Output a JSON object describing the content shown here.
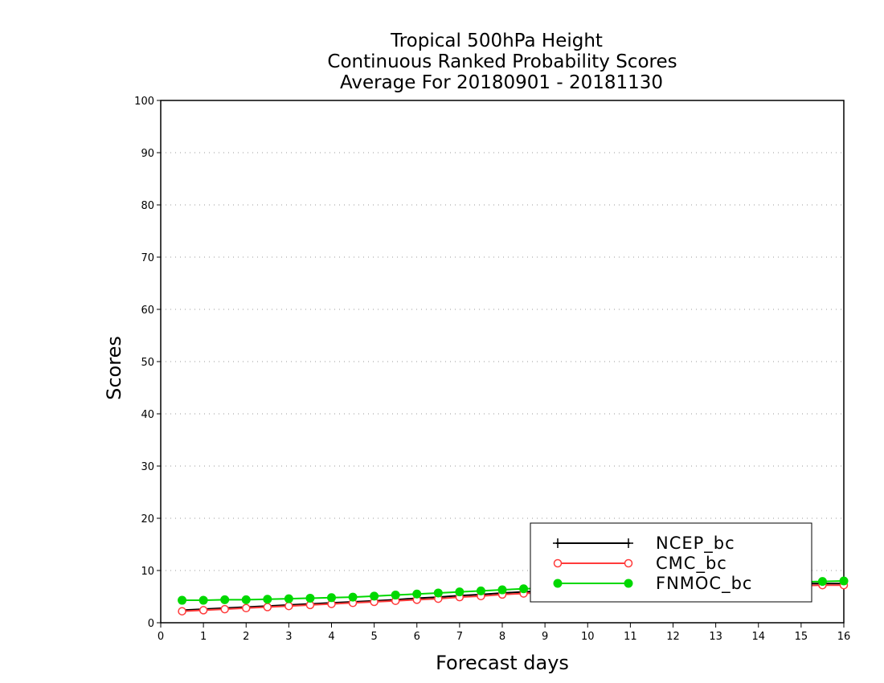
{
  "chart_data": {
    "type": "line",
    "title": [
      "Tropical 500hPa Height",
      "Continuous Ranked Probability Scores",
      "Average For 20180901 - 20181130"
    ],
    "xlabel": "Forecast days",
    "ylabel": "Scores",
    "xlim": [
      0,
      16
    ],
    "ylim": [
      0,
      100
    ],
    "xticks": [
      "0",
      "1",
      "2",
      "3",
      "4",
      "5",
      "6",
      "7",
      "8",
      "9",
      "10",
      "11",
      "12",
      "13",
      "14",
      "15",
      "16"
    ],
    "yticks": [
      "0",
      "10",
      "20",
      "30",
      "40",
      "50",
      "60",
      "70",
      "80",
      "90",
      "100"
    ],
    "grid": "horizontal dotted",
    "legend_position": "bottom-right",
    "x": [
      0.5,
      1,
      1.5,
      2,
      2.5,
      3,
      3.5,
      4,
      4.5,
      5,
      5.5,
      6,
      6.5,
      7,
      7.5,
      8,
      8.5,
      9,
      9.5,
      10,
      10.5,
      11,
      11.5,
      12,
      12.5,
      13,
      13.5,
      14,
      14.5,
      15,
      15.5,
      16
    ],
    "series": [
      {
        "name": "NCEP_bc",
        "color": "#000000",
        "marker": "plus",
        "values": [
          2.4,
          2.6,
          2.8,
          3.0,
          3.2,
          3.4,
          3.6,
          3.8,
          4.0,
          4.2,
          4.4,
          4.7,
          4.9,
          5.2,
          5.4,
          5.7,
          5.9,
          6.1,
          6.3,
          6.5,
          6.6,
          6.7,
          6.8,
          6.9,
          7.0,
          7.1,
          7.2,
          7.3,
          7.4,
          7.5,
          7.5,
          7.5
        ]
      },
      {
        "name": "CMC_bc",
        "color": "#ff3b3b",
        "marker": "open-circle",
        "values": [
          2.2,
          2.4,
          2.6,
          2.8,
          3.0,
          3.2,
          3.4,
          3.6,
          3.8,
          4.0,
          4.2,
          4.4,
          4.6,
          4.9,
          5.1,
          5.4,
          5.6,
          5.8,
          6.0,
          6.2,
          6.3,
          6.4,
          6.5,
          6.6,
          6.7,
          6.8,
          6.9,
          7.0,
          7.1,
          7.1,
          7.2,
          7.2
        ]
      },
      {
        "name": "FNMOC_bc",
        "color": "#00d800",
        "marker": "filled-circle",
        "values": [
          4.3,
          4.3,
          4.4,
          4.4,
          4.5,
          4.6,
          4.7,
          4.8,
          4.9,
          5.1,
          5.3,
          5.5,
          5.7,
          5.9,
          6.1,
          6.3,
          6.5,
          6.6,
          6.8,
          6.9,
          7.0,
          7.1,
          7.2,
          7.3,
          7.4,
          7.5,
          7.5,
          7.6,
          7.7,
          7.8,
          7.9,
          8.0
        ]
      }
    ]
  }
}
